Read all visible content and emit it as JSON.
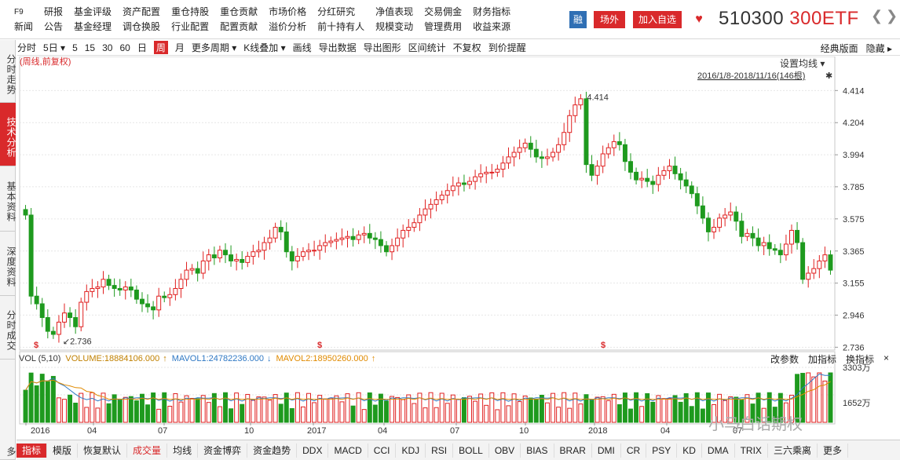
{
  "menu": [
    {
      "top": "F9",
      "bottom": "新闻"
    },
    {
      "top": "研报",
      "bottom": "公告"
    },
    {
      "top": "基金评级",
      "bottom": "基金经理"
    },
    {
      "top": "资产配置",
      "bottom": "调仓换股"
    },
    {
      "top": "重仓持股",
      "bottom": "行业配置"
    },
    {
      "top": "重仓贡献",
      "bottom": "配置贡献"
    },
    {
      "top": "市场价格",
      "bottom": "溢价分析"
    },
    {
      "top": "分红研究",
      "bottom": "前十持有人"
    },
    {
      "top": "净值表现",
      "bottom": "规模变动"
    },
    {
      "top": "交易佣金",
      "bottom": "管理费用"
    },
    {
      "top": "财务指标",
      "bottom": "收益来源"
    }
  ],
  "header": {
    "rong": "融",
    "changwai": "场外",
    "add_watch": "加入自选",
    "heart": "♥",
    "code": "510300",
    "name": "300ETF",
    "prev": "❮",
    "next": "❯"
  },
  "toolbar": {
    "items": [
      "分时",
      "5日 ▾",
      "5",
      "15",
      "30",
      "60",
      "日",
      "周",
      "月",
      "更多周期 ▾",
      "K线叠加 ▾",
      "画线",
      "导出数据",
      "导出图形",
      "区间统计",
      "不复权",
      "到价提醒"
    ],
    "selected": "周",
    "right": [
      "经典版面",
      "隐藏 ▸"
    ]
  },
  "side": [
    "分时走势",
    "技术分析",
    "基本资料",
    "深度资料",
    "分时成交",
    "多"
  ],
  "side_selected": "技术分析",
  "chart_top": {
    "label": "(周线,前复权)",
    "setting": "设置均线 ▾",
    "range": "2016/1/8-2018/11/16(146根)",
    "pin": "✱"
  },
  "chart_data": {
    "type": "candlestick",
    "period": "weekly",
    "ylim": [
      2.736,
      4.414
    ],
    "yticks": [
      "4.414",
      "4.204",
      "3.994",
      "3.785",
      "3.575",
      "3.365",
      "3.155",
      "2.946",
      "2.736"
    ],
    "xticks": [
      "2016",
      "04",
      "07",
      "10",
      "2017",
      "04",
      "07",
      "10",
      "2018",
      "04",
      "07"
    ],
    "max_label": "4.414",
    "min_label": "2.736",
    "dividend_marks": [
      "$",
      "$",
      "$"
    ],
    "closes": [
      3.6,
      3.07,
      3.02,
      2.93,
      2.84,
      2.82,
      2.9,
      2.96,
      2.93,
      2.87,
      3.03,
      3.1,
      3.12,
      3.13,
      3.18,
      3.14,
      3.12,
      3.11,
      3.13,
      3.11,
      3.05,
      3.02,
      3.0,
      2.98,
      3.07,
      3.06,
      3.08,
      3.12,
      3.18,
      3.24,
      3.25,
      3.22,
      3.3,
      3.34,
      3.32,
      3.37,
      3.34,
      3.3,
      3.31,
      3.29,
      3.33,
      3.36,
      3.37,
      3.42,
      3.45,
      3.52,
      3.49,
      3.36,
      3.3,
      3.33,
      3.36,
      3.37,
      3.37,
      3.4,
      3.42,
      3.43,
      3.44,
      3.45,
      3.46,
      3.44,
      3.47,
      3.48,
      3.45,
      3.44,
      3.4,
      3.36,
      3.4,
      3.45,
      3.5,
      3.52,
      3.55,
      3.6,
      3.64,
      3.67,
      3.7,
      3.73,
      3.76,
      3.79,
      3.81,
      3.8,
      3.82,
      3.85,
      3.87,
      3.88,
      3.88,
      3.9,
      3.94,
      3.98,
      4.01,
      4.04,
      4.07,
      4.03,
      3.98,
      3.97,
      3.98,
      4.01,
      4.06,
      4.14,
      4.25,
      4.32,
      4.36,
      3.93,
      3.86,
      3.92,
      4.0,
      4.04,
      4.08,
      4.06,
      3.95,
      3.88,
      3.83,
      3.84,
      3.82,
      3.8,
      3.86,
      3.89,
      3.92,
      3.87,
      3.83,
      3.79,
      3.74,
      3.66,
      3.58,
      3.49,
      3.52,
      3.58,
      3.6,
      3.62,
      3.56,
      3.46,
      3.48,
      3.45,
      3.4,
      3.42,
      3.38,
      3.37,
      3.34,
      3.41,
      3.5,
      3.42,
      3.18,
      3.22,
      3.25,
      3.3,
      3.34,
      3.24
    ],
    "volume": {
      "label": "VOL (5,10)",
      "volume": "VOLUME:18884106.000",
      "mavol1": "MAVOL1:24782236.000",
      "mavol2": "MAVOL2:18950260.000",
      "ymax_label": "3303万",
      "ymid_label": "1652万",
      "buttons": [
        "改参数",
        "加指标",
        "换指标",
        "×"
      ]
    }
  },
  "bottom": [
    "指标",
    "模版",
    "恢复默认",
    "成交量",
    "均线",
    "资金博弈",
    "资金趋势",
    "DDX",
    "MACD",
    "CCI",
    "KDJ",
    "RSI",
    "BOLL",
    "OBV",
    "BIAS",
    "BRAR",
    "DMI",
    "CR",
    "PSY",
    "KD",
    "DMA",
    "TRIX",
    "三六乘离",
    "更多"
  ],
  "bottom_selected": "指标",
  "bottom_highlight": "成交量",
  "watermark": "小马白话期权"
}
